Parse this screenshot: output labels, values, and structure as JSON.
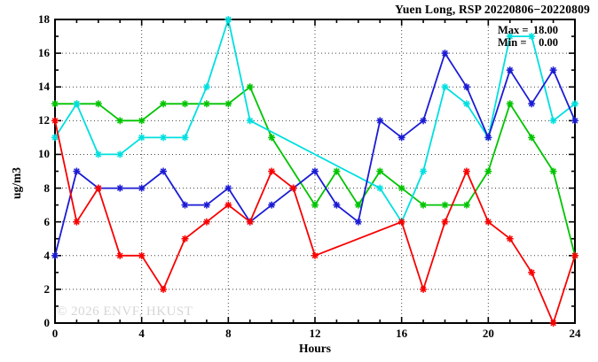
{
  "title": "Yuen Long, RSP 20220806−20220809",
  "legend": {
    "max_label": "Max =",
    "max_value": "18.00",
    "min_label": "Min =",
    "min_value": "0.00"
  },
  "watermark": "© 2026 ENVF, HKUST",
  "chart_data": {
    "type": "line",
    "title": "Yuen Long, RSP 20220806−20220809",
    "xlabel": "Hours",
    "ylabel": "ug/m3",
    "xlim": [
      0,
      24
    ],
    "ylim": [
      0,
      18
    ],
    "x_major_ticks": [
      0,
      4,
      8,
      12,
      16,
      20,
      24
    ],
    "x_tick_labels": [
      "0",
      "4",
      "8",
      "12",
      "16",
      "20",
      "24"
    ],
    "y_major_ticks": [
      0,
      2,
      4,
      6,
      8,
      10,
      12,
      14,
      16,
      18
    ],
    "y_tick_labels": [
      "0",
      "2",
      "4",
      "6",
      "8",
      "10",
      "12",
      "14",
      "16",
      "18"
    ],
    "grid_x": [
      4,
      8,
      12,
      16,
      20
    ],
    "grid_y": [
      2,
      4,
      6,
      8,
      10,
      12,
      14,
      16
    ],
    "grid": true,
    "legend_position": "top-right-inside",
    "stats": {
      "max": 18.0,
      "min": 0.0
    },
    "x": [
      0,
      1,
      2,
      3,
      4,
      5,
      6,
      7,
      8,
      9,
      10,
      11,
      12,
      13,
      14,
      15,
      16,
      17,
      18,
      19,
      20,
      21,
      22,
      23,
      24
    ],
    "series": [
      {
        "name": "green",
        "color": "#00c400",
        "marker": "asterisk",
        "values": [
          13,
          13,
          13,
          12,
          12,
          13,
          13,
          13,
          13,
          14,
          11,
          null,
          7,
          9,
          7,
          9,
          8,
          7,
          7,
          7,
          9,
          13,
          11,
          9,
          4
        ]
      },
      {
        "name": "cyan",
        "color": "#00dfdf",
        "marker": "asterisk",
        "values": [
          11,
          13,
          10,
          10,
          11,
          11,
          11,
          14,
          18,
          12,
          null,
          null,
          null,
          null,
          null,
          8,
          6,
          9,
          14,
          13,
          11,
          17,
          17,
          12,
          13
        ]
      },
      {
        "name": "blue",
        "color": "#1b1bd4",
        "marker": "asterisk",
        "values": [
          4,
          9,
          8,
          8,
          8,
          9,
          7,
          7,
          8,
          6,
          7,
          8,
          9,
          7,
          6,
          12,
          11,
          12,
          16,
          14,
          11,
          15,
          13,
          15,
          12
        ]
      },
      {
        "name": "red",
        "color": "#f80000",
        "marker": "asterisk",
        "values": [
          12,
          6,
          8,
          4,
          4,
          2,
          5,
          6,
          7,
          6,
          9,
          8,
          4,
          null,
          null,
          null,
          6,
          2,
          6,
          9,
          6,
          5,
          3,
          0,
          4
        ]
      }
    ]
  }
}
